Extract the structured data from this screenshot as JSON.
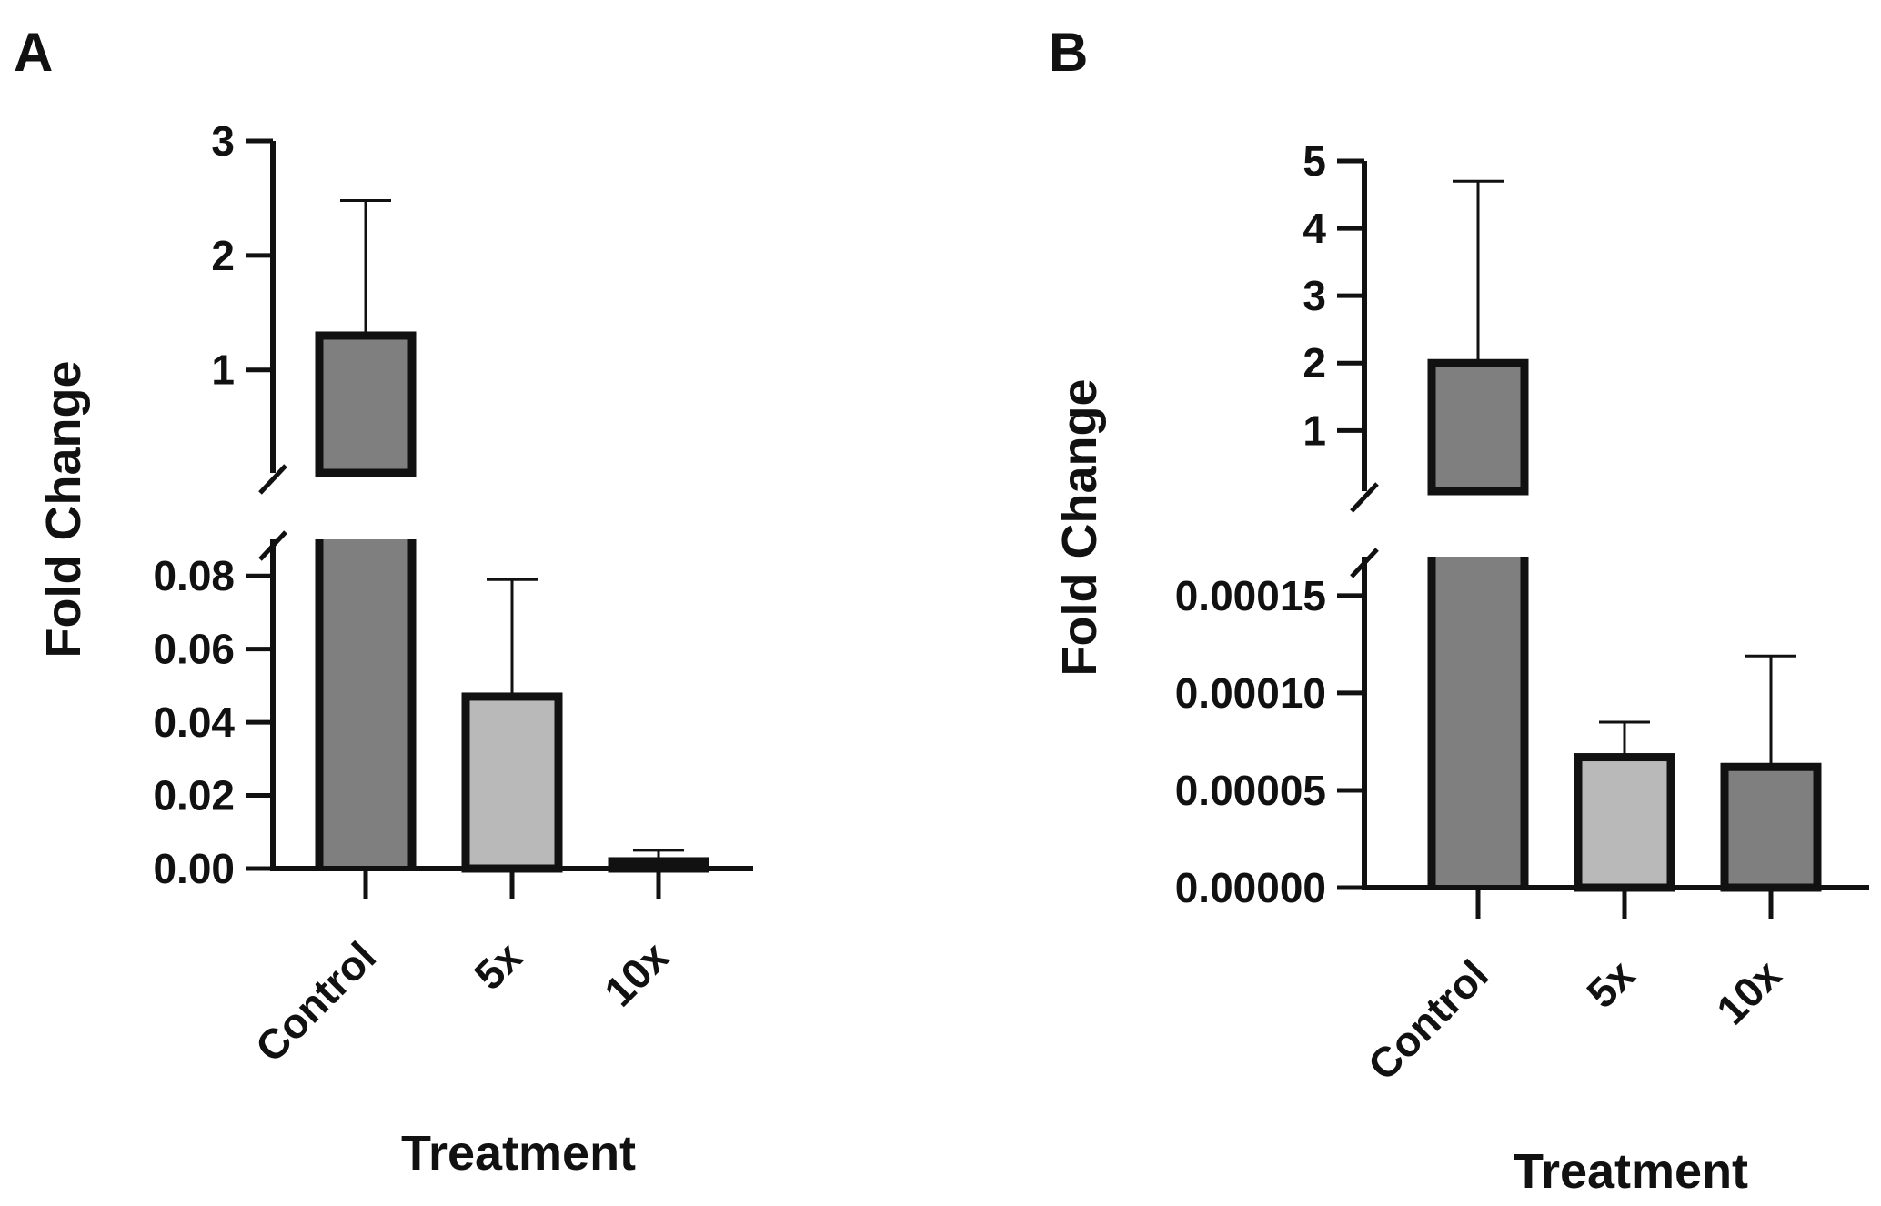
{
  "colors": {
    "ink": "#111111",
    "bar_dark": "#7f7f7f",
    "bar_light": "#b9b9b9",
    "background": "#ffffff"
  },
  "chart_data": [
    {
      "panel_label": "A",
      "type": "bar",
      "broken_axis": true,
      "xlabel": "Treatment",
      "ylabel": "Fold Change",
      "categories": [
        "Control",
        "5x",
        "10x"
      ],
      "values": [
        1.3,
        0.047,
        0.002
      ],
      "errors_upper": [
        2.48,
        0.079,
        0.005
      ],
      "bar_colors": [
        "#7f7f7f",
        "#b9b9b9",
        "#7f7f7f"
      ],
      "lower_segment": {
        "ylim": [
          0,
          0.09
        ],
        "ticks": [
          0,
          0.02,
          0.04,
          0.06,
          0.08
        ],
        "tick_labels": [
          "0.00",
          "0.02",
          "0.04",
          "0.06",
          "0.08"
        ]
      },
      "upper_segment": {
        "ylim": [
          0.1,
          3
        ],
        "ticks": [
          1,
          2,
          3
        ],
        "tick_labels": [
          "1",
          "2",
          "3"
        ]
      }
    },
    {
      "panel_label": "B",
      "type": "bar",
      "broken_axis": true,
      "xlabel": "Treatment",
      "ylabel": "Fold Change",
      "categories": [
        "Control",
        "5x",
        "10x"
      ],
      "values": [
        2.0,
        6.7e-05,
        6.2e-05
      ],
      "errors_upper": [
        4.7,
        8.5e-05,
        0.000119
      ],
      "bar_colors": [
        "#7f7f7f",
        "#b9b9b9",
        "#7f7f7f"
      ],
      "lower_segment": {
        "ylim": [
          0,
          0.00017
        ],
        "ticks": [
          0,
          5e-05,
          0.0001,
          0.00015
        ],
        "tick_labels": [
          "0.00000",
          "0.00005",
          "0.00010",
          "0.00015"
        ]
      },
      "upper_segment": {
        "ylim": [
          0.1,
          5
        ],
        "ticks": [
          1,
          2,
          3,
          4,
          5
        ],
        "tick_labels": [
          "1",
          "2",
          "3",
          "4",
          "5"
        ]
      }
    }
  ]
}
